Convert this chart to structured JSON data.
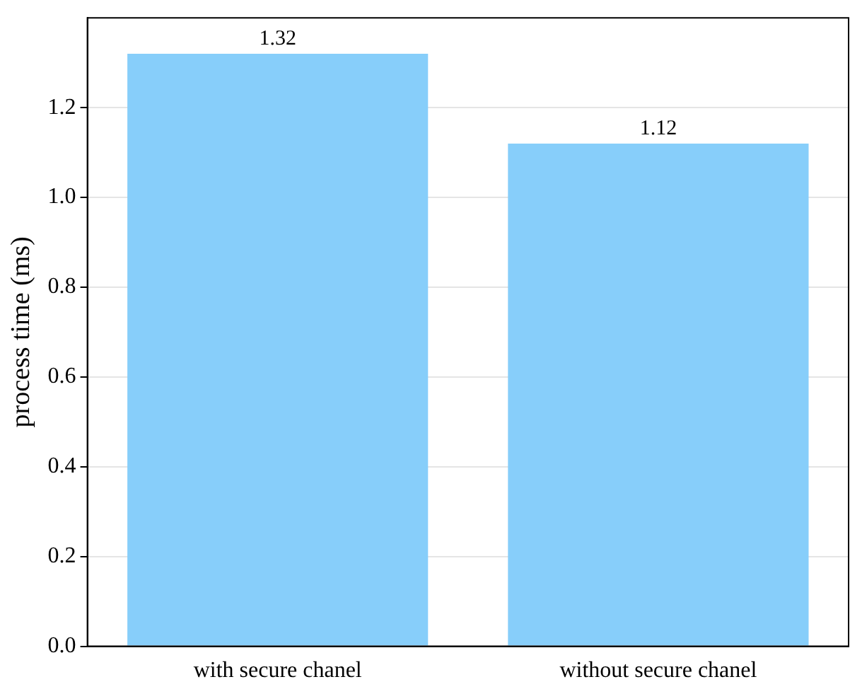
{
  "chart_data": {
    "type": "bar",
    "ylabel": "process time (ms)",
    "categories": [
      "with secure chanel",
      "without secure chanel"
    ],
    "values": [
      1.32,
      1.12
    ],
    "color": "#87cefa",
    "ylim": [
      0,
      1.4
    ],
    "yticks": [
      {
        "value": 0,
        "label": "0.0"
      },
      0.2,
      0.4,
      0.6,
      0.8,
      {
        "value": 1,
        "label": "1.0"
      },
      1.2
    ],
    "grid": "y",
    "data_labels": true
  }
}
